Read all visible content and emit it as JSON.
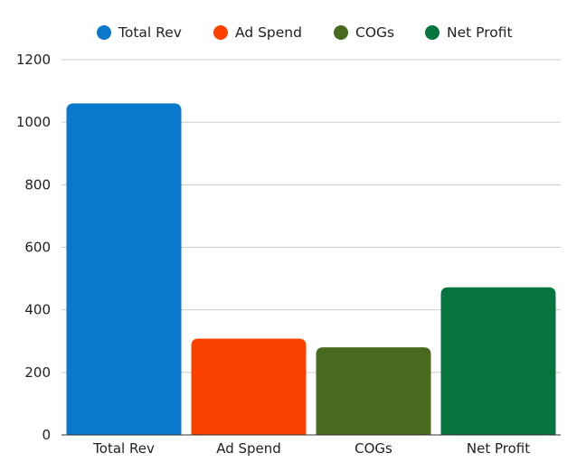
{
  "chart_data": {
    "type": "bar",
    "categories": [
      "Total Rev",
      "Ad Spend",
      "COGs",
      "Net Profit"
    ],
    "values": [
      1060,
      308,
      280,
      472
    ],
    "colors": [
      "#0a78cd",
      "#fa4100",
      "#486a1e",
      "#077540"
    ],
    "legend": {
      "position": "top",
      "entries": [
        "Total Rev",
        "Ad Spend",
        "COGs",
        "Net Profit"
      ]
    },
    "ylim": [
      0,
      1200
    ],
    "yticks": [
      "0",
      "200",
      "400",
      "600",
      "800",
      "1000",
      "1200"
    ],
    "grid": true
  }
}
